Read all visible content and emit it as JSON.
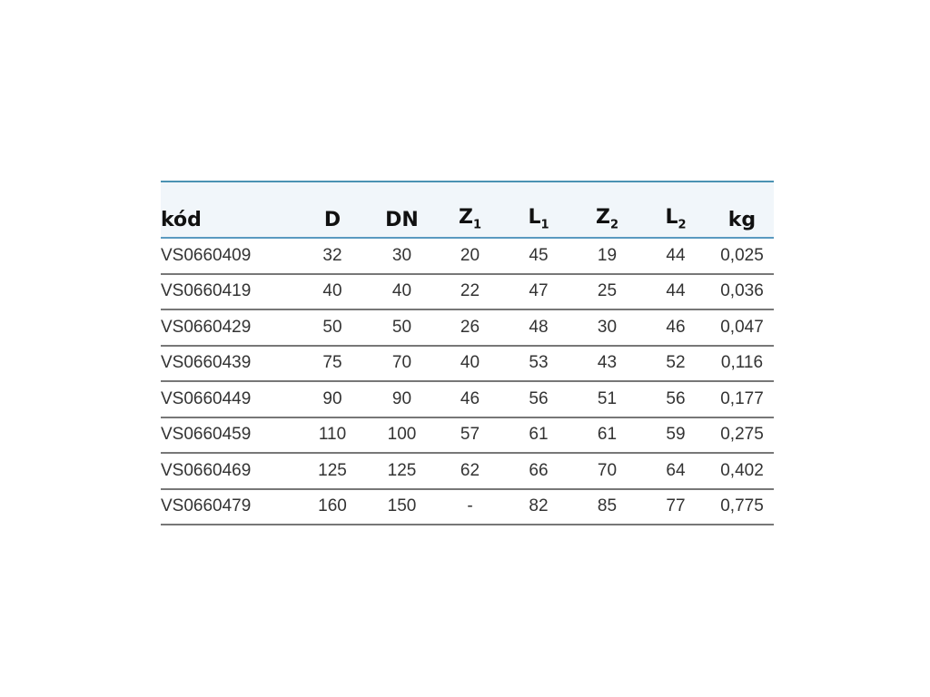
{
  "table": {
    "headers": [
      {
        "main": "kód",
        "sub": ""
      },
      {
        "main": "D",
        "sub": ""
      },
      {
        "main": "DN",
        "sub": ""
      },
      {
        "main": "Z",
        "sub": "1"
      },
      {
        "main": "L",
        "sub": "1"
      },
      {
        "main": "Z",
        "sub": "2"
      },
      {
        "main": "L",
        "sub": "2"
      },
      {
        "main": "kg",
        "sub": ""
      }
    ],
    "rows": [
      [
        "VS0660409",
        "32",
        "30",
        "20",
        "45",
        "19",
        "44",
        "0,025"
      ],
      [
        "VS0660419",
        "40",
        "40",
        "22",
        "47",
        "25",
        "44",
        "0,036"
      ],
      [
        "VS0660429",
        "50",
        "50",
        "26",
        "48",
        "30",
        "46",
        "0,047"
      ],
      [
        "VS0660439",
        "75",
        "70",
        "40",
        "53",
        "43",
        "52",
        "0,116"
      ],
      [
        "VS0660449",
        "90",
        "90",
        "46",
        "56",
        "51",
        "56",
        "0,177"
      ],
      [
        "VS0660459",
        "110",
        "100",
        "57",
        "61",
        "61",
        "59",
        "0,275"
      ],
      [
        "VS0660469",
        "125",
        "125",
        "62",
        "66",
        "70",
        "64",
        "0,402"
      ],
      [
        "VS0660479",
        "160",
        "150",
        "-",
        "82",
        "85",
        "77",
        "0,775"
      ]
    ]
  }
}
